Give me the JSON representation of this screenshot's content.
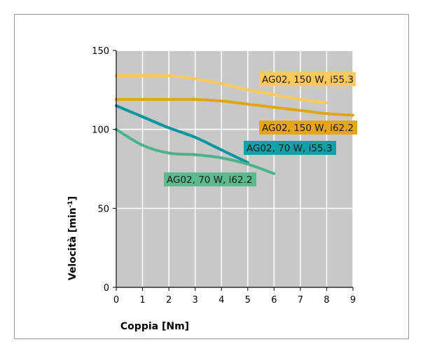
{
  "chart_data": {
    "type": "line",
    "xlabel": "Coppia [Nm]",
    "ylabel_main": "Velocità [min",
    "ylabel_sup": "-1",
    "ylabel_tail": "]",
    "xlim": [
      0,
      9
    ],
    "ylim": [
      0,
      150
    ],
    "xticks": [
      "0",
      "1",
      "2",
      "3",
      "4",
      "5",
      "6",
      "7",
      "8",
      "9"
    ],
    "yticks": [
      "0",
      "50",
      "100",
      "150"
    ],
    "grid": true,
    "colors": {
      "plot_bg": "#c8c8c8",
      "grid": "#ffffff",
      "axis": "#000000",
      "frame": "#999999"
    },
    "series": [
      {
        "name": "AG02, 150 W, i55.3",
        "color": "#fdc95b",
        "label_color": "#fdc95b",
        "x": [
          0,
          1,
          2,
          3,
          4,
          5,
          6,
          7,
          8
        ],
        "y": [
          134,
          134,
          134,
          132,
          129,
          125,
          122,
          119,
          117
        ]
      },
      {
        "name": "AG02, 150 W, i62.2",
        "color": "#e0a70c",
        "label_color": "#e6a514",
        "x": [
          0,
          1,
          2,
          3,
          4,
          5,
          6,
          7,
          8,
          9
        ],
        "y": [
          119,
          119,
          119,
          119,
          118,
          116,
          114,
          112,
          110,
          109
        ]
      },
      {
        "name": "AG02, 70 W, i55.3",
        "color": "#00959f",
        "label_color": "#0fa0a8",
        "x": [
          0,
          1,
          2,
          3,
          4,
          5
        ],
        "y": [
          115,
          108,
          101,
          95,
          87,
          79
        ]
      },
      {
        "name": "AG02, 70 W, i62.2",
        "color": "#4cb28c",
        "label_color": "#5cba8e",
        "x": [
          0,
          1,
          2,
          3,
          4,
          5,
          6
        ],
        "y": [
          100,
          90,
          85,
          84,
          82,
          78,
          72
        ]
      }
    ]
  }
}
